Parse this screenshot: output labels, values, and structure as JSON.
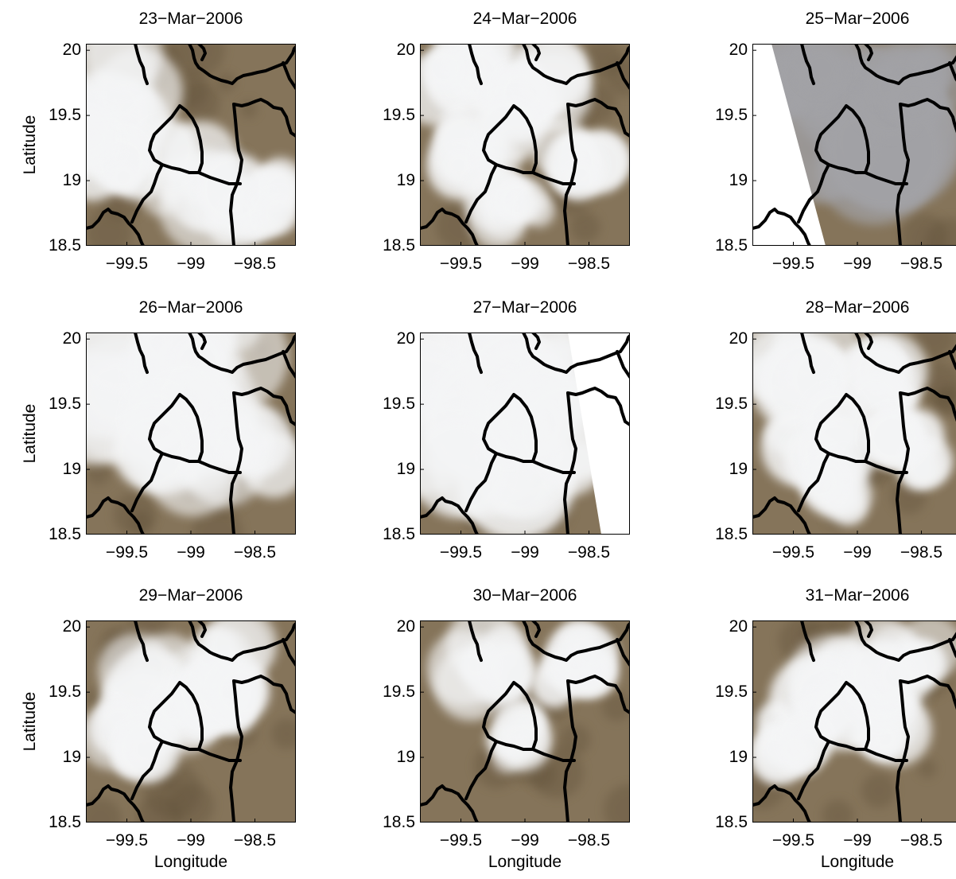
{
  "figure": {
    "panels": [
      {
        "date": "23−Mar−2006",
        "cloud_pattern": "west-and-south-cloud",
        "swath_gap": "none"
      },
      {
        "date": "24−Mar−2006",
        "cloud_pattern": "scattered-cloud",
        "swath_gap": "none"
      },
      {
        "date": "25−Mar−2006",
        "cloud_pattern": "grey-haze",
        "swath_gap": "left-wedge"
      },
      {
        "date": "26−Mar−2006",
        "cloud_pattern": "heavy-north-cloud",
        "swath_gap": "none"
      },
      {
        "date": "27−Mar−2006",
        "cloud_pattern": "heavy-cloud",
        "swath_gap": "right-wedge"
      },
      {
        "date": "28−Mar−2006",
        "cloud_pattern": "scattered-cloud",
        "swath_gap": "none"
      },
      {
        "date": "29−Mar−2006",
        "cloud_pattern": "central-cloud",
        "swath_gap": "none"
      },
      {
        "date": "30−Mar−2006",
        "cloud_pattern": "light-cloud",
        "swath_gap": "none"
      },
      {
        "date": "31−Mar−2006",
        "cloud_pattern": "central-cloud",
        "swath_gap": "none"
      }
    ],
    "x_axis": {
      "label": "Longitude",
      "range": [
        -99.82,
        -98.18
      ],
      "ticks": [
        -99.5,
        -99,
        -98.5
      ],
      "tick_labels": [
        "−99.5",
        "−99",
        "−98.5"
      ]
    },
    "y_axis": {
      "label": "Latitude",
      "range": [
        18.5,
        20.05
      ],
      "ticks": [
        18.5,
        19,
        19.5,
        20
      ],
      "tick_labels": [
        "18.5",
        "19",
        "19.5",
        "20"
      ]
    },
    "colors": {
      "land": "#85745a",
      "land_dark": "#5f5038",
      "cloud": "#f4f5f6",
      "haze": "#a2a2a6",
      "boundary": "#000000"
    },
    "boundary_lines": "state boundaries (black)"
  }
}
